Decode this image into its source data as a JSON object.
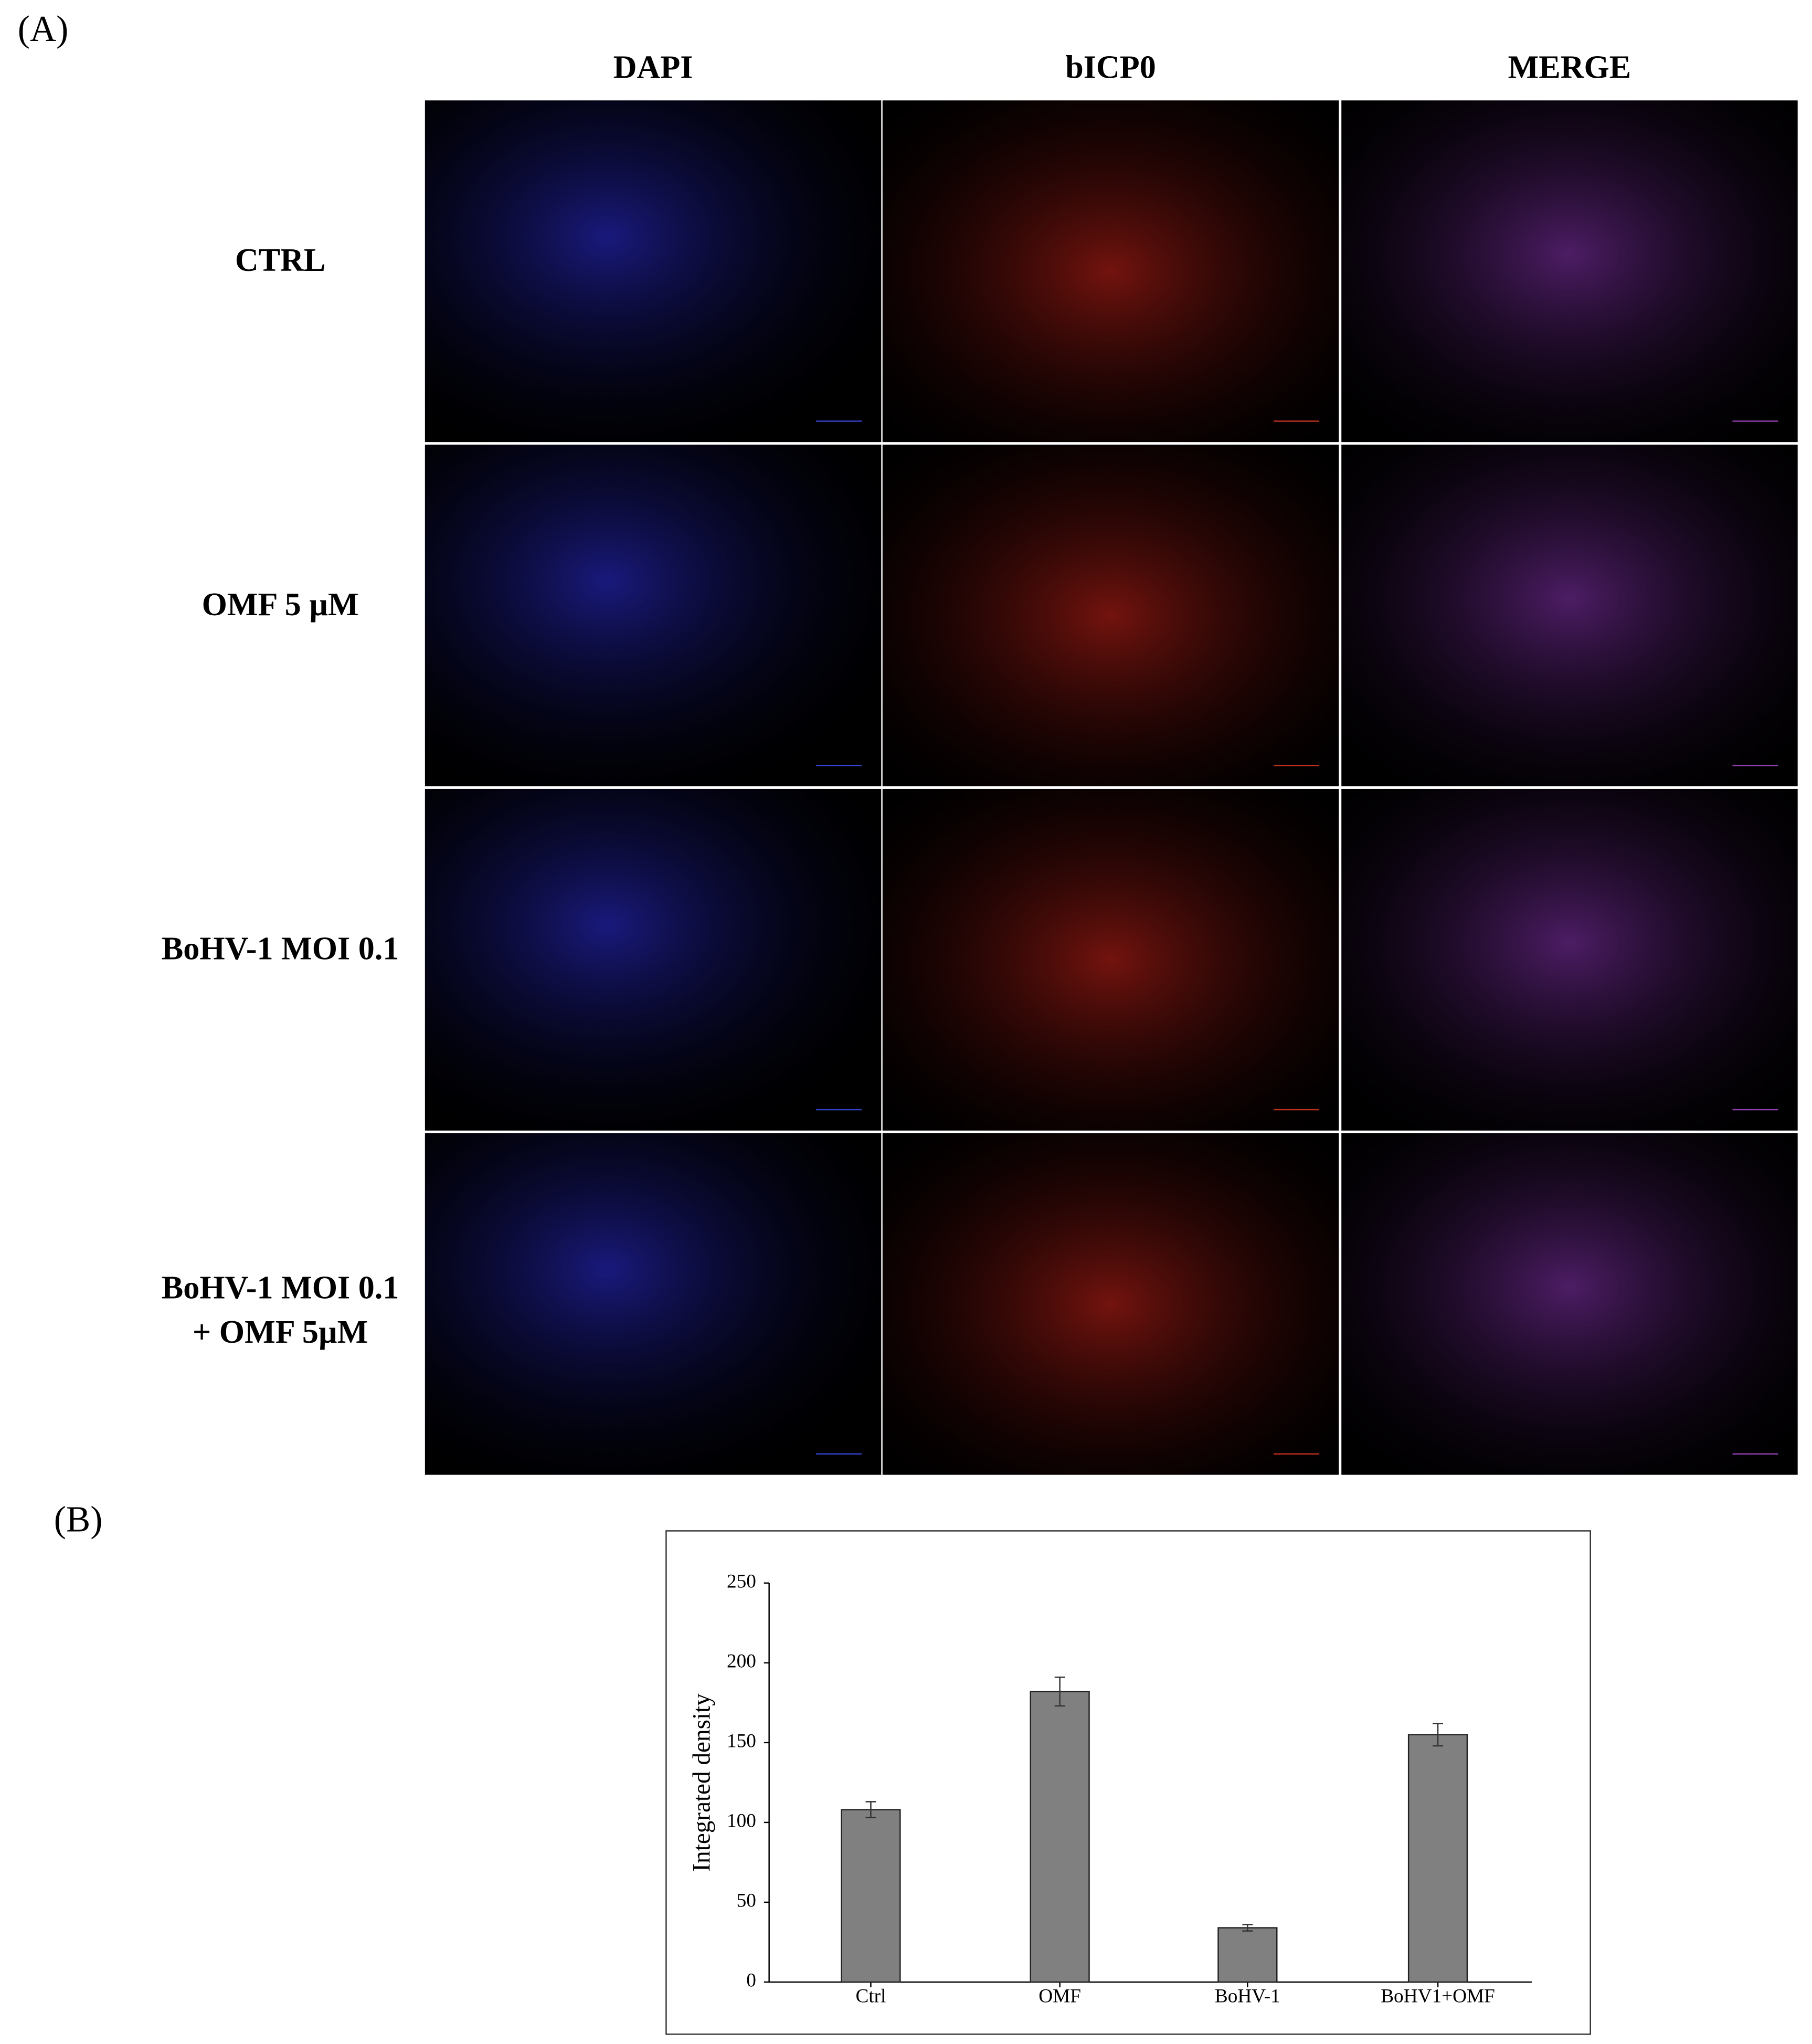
{
  "panel_a": {
    "label": "(A)",
    "columns": [
      "DAPI",
      "bICP0",
      "MERGE"
    ],
    "rows": [
      [
        "CTRL"
      ],
      [
        "OMF 5 µM"
      ],
      [
        "BoHV-1 MOI 0.1"
      ],
      [
        "BoHV-1 MOI 0.1",
        "+ OMF 5µM"
      ]
    ]
  },
  "panel_b": {
    "label": "(B)"
  },
  "chart_data": {
    "type": "bar",
    "categories": [
      "Ctrl",
      "OMF",
      "BoHV-1",
      "BoHV1+OMF"
    ],
    "values": [
      108,
      182,
      34,
      155
    ],
    "errors": [
      5,
      9,
      2,
      7
    ],
    "color": "#808080",
    "y_label": "Integrated density",
    "ylim": [
      0,
      250
    ],
    "yticks": [
      0,
      50,
      100,
      150,
      200,
      250
    ]
  }
}
